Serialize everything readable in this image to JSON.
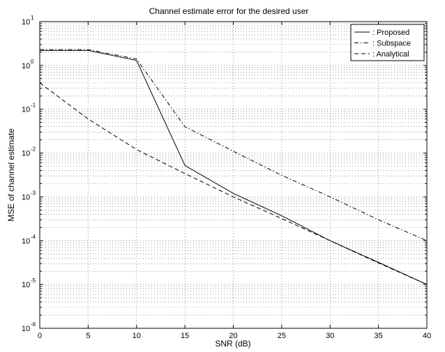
{
  "chart_data": {
    "type": "line",
    "title": "Channel estimate error for the desired user",
    "xlabel": "SNR (dB)",
    "ylabel": "MSE of channel estimate",
    "xlim": [
      0,
      40
    ],
    "ylim": [
      1e-06,
      10
    ],
    "yscale": "log",
    "grid": true,
    "legend_position": "top-right",
    "x_ticks": [
      "0",
      "5",
      "10",
      "15",
      "20",
      "25",
      "30",
      "35",
      "40"
    ],
    "y_tick_exponents": [
      "-6",
      "-5",
      "-4",
      "-3",
      "-2",
      "-1",
      "0",
      "1"
    ],
    "y_tick_base": "10",
    "series": [
      {
        "name": ": Proposed",
        "style": "solid",
        "x": [
          0,
          5,
          10,
          15,
          20,
          25,
          30,
          35,
          40
        ],
        "y": [
          2.2,
          2.2,
          1.3,
          0.0052,
          0.0012,
          0.00037,
          0.0001,
          3.2e-05,
          1e-05
        ]
      },
      {
        "name": ": Subspace",
        "style": "dashdot",
        "x": [
          0,
          5,
          10,
          15,
          20,
          25,
          30,
          35,
          40
        ],
        "y": [
          2.3,
          2.3,
          1.4,
          0.04,
          0.011,
          0.0031,
          0.001,
          0.0003,
          0.0001
        ]
      },
      {
        "name": ": Analytical",
        "style": "dashed",
        "x": [
          0,
          5,
          10,
          15,
          20,
          25,
          30,
          35,
          40
        ],
        "y": [
          0.4,
          0.06,
          0.012,
          0.0034,
          0.001,
          0.00032,
          0.0001,
          3.1e-05,
          1e-05
        ]
      }
    ]
  }
}
